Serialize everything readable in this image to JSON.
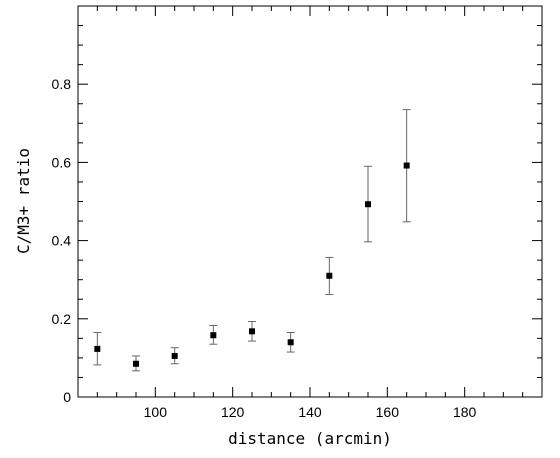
{
  "chart_data": {
    "type": "scatter",
    "title": "",
    "xlabel": "distance (arcmin)",
    "ylabel": "C/M3+ ratio",
    "xlim": [
      80,
      200
    ],
    "ylim": [
      0,
      1.0
    ],
    "x_major_ticks": [
      100,
      120,
      140,
      160,
      180
    ],
    "x_minor_step": 5,
    "y_major_ticks": [
      0,
      0.2,
      0.4,
      0.6,
      0.8
    ],
    "y_minor_step": 0.05,
    "x_tick_labels": [
      "100",
      "120",
      "140",
      "160",
      "180"
    ],
    "y_tick_labels": [
      "0",
      "0.2",
      "0.4",
      "0.6",
      "0.8"
    ],
    "grid": false,
    "legend": "none",
    "marker": "square",
    "series": [
      {
        "x": [
          85,
          95,
          105,
          115,
          125,
          135,
          145,
          155,
          165
        ],
        "y": [
          0.123,
          0.085,
          0.105,
          0.158,
          0.168,
          0.14,
          0.31,
          0.493,
          0.592
        ],
        "y_err_low": [
          0.082,
          0.067,
          0.085,
          0.135,
          0.143,
          0.115,
          0.262,
          0.397,
          0.448
        ],
        "y_err_high": [
          0.165,
          0.105,
          0.126,
          0.183,
          0.193,
          0.165,
          0.357,
          0.59,
          0.735
        ]
      }
    ]
  }
}
